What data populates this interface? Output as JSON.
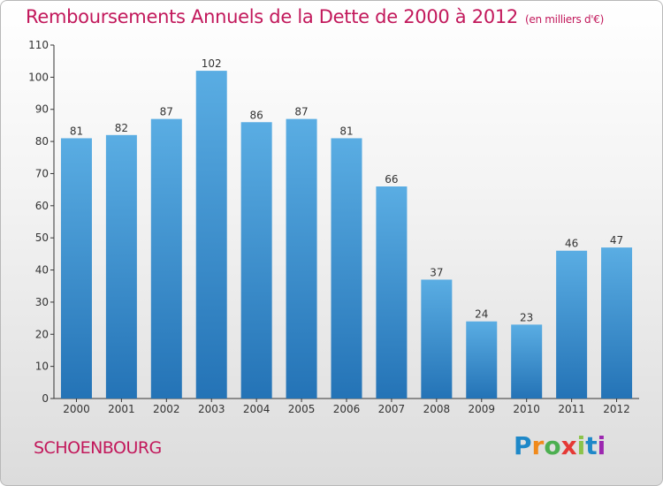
{
  "header": {
    "title": "Remboursements Annuels de la Dette de 2000 à 2012",
    "unit": "(en milliers d'€)"
  },
  "footer": {
    "city": "SCHOENBOURG",
    "logo": "Proxiti"
  },
  "colors": {
    "bar_top": "#5aade3",
    "bar_bottom": "#2473b6",
    "title": "#c2185b"
  },
  "chart_data": {
    "type": "bar",
    "title": "Remboursements Annuels de la Dette de 2000 à 2012",
    "xlabel": "",
    "ylabel": "",
    "categories": [
      "2000",
      "2001",
      "2002",
      "2003",
      "2004",
      "2005",
      "2006",
      "2007",
      "2008",
      "2009",
      "2010",
      "2011",
      "2012"
    ],
    "values": [
      81,
      82,
      87,
      102,
      86,
      87,
      81,
      66,
      37,
      24,
      23,
      46,
      47
    ],
    "ylim": [
      0,
      110
    ],
    "yticks": [
      0,
      10,
      20,
      30,
      40,
      50,
      60,
      70,
      80,
      90,
      100,
      110
    ],
    "grid": false,
    "legend": "none"
  }
}
